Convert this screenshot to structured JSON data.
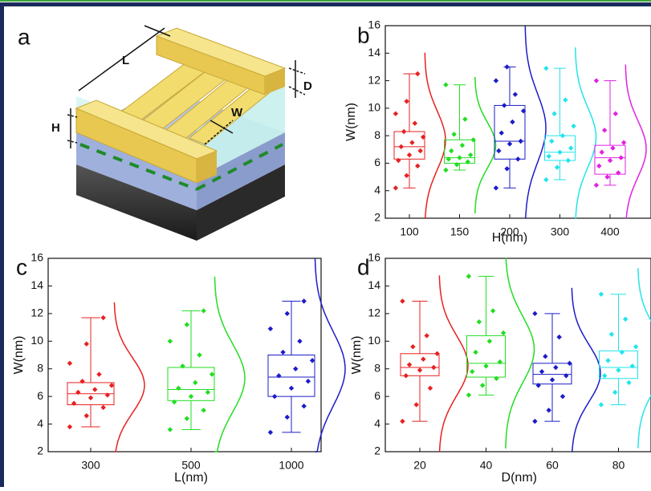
{
  "diagram": {
    "panel_label": "a",
    "labels": {
      "length": "L",
      "depth": "D",
      "height": "H",
      "width": "W"
    }
  },
  "chart_data": [
    {
      "type": "box",
      "panel_label": "b",
      "xlabel": "H(nm)",
      "ylabel": "W(nm)",
      "categories": [
        "100",
        "150",
        "200",
        "300",
        "400"
      ],
      "ylim": [
        2,
        16
      ],
      "yticks": [
        2,
        4,
        6,
        8,
        10,
        12,
        14,
        16
      ],
      "groups": [
        {
          "color": "#e82020",
          "box": [
            4.2,
            6.3,
            7.2,
            8.3,
            12.5
          ],
          "points": [
            4.2,
            5.1,
            5.8,
            6.2,
            6.6,
            6.9,
            7.2,
            7.5,
            7.9,
            8.3,
            8.9,
            9.6,
            10.5,
            12.5
          ]
        },
        {
          "color": "#22dd22",
          "box": [
            5.5,
            6.0,
            6.4,
            7.7,
            11.7
          ],
          "points": [
            5.5,
            5.9,
            6.1,
            6.3,
            6.4,
            6.6,
            6.9,
            7.3,
            7.7,
            8.1,
            9.2,
            11.7
          ]
        },
        {
          "color": "#1c1cc8",
          "box": [
            4.2,
            6.3,
            7.6,
            10.2,
            13.0
          ],
          "points": [
            4.2,
            5.6,
            6.3,
            6.9,
            7.4,
            7.6,
            8.2,
            9.0,
            9.8,
            10.2,
            11.0,
            12.0,
            13.0
          ]
        },
        {
          "color": "#22e4ec",
          "box": [
            4.8,
            6.2,
            6.8,
            8.0,
            12.9
          ],
          "points": [
            4.8,
            5.7,
            6.2,
            6.5,
            6.8,
            7.1,
            7.6,
            8.0,
            8.7,
            9.6,
            10.6,
            12.9
          ]
        },
        {
          "color": "#e022e0",
          "box": [
            4.4,
            5.2,
            6.4,
            7.3,
            12.0
          ],
          "points": [
            4.4,
            5.0,
            5.3,
            5.8,
            6.2,
            6.4,
            6.8,
            7.1,
            7.5,
            8.4,
            9.6,
            12.0
          ]
        }
      ]
    },
    {
      "type": "box",
      "panel_label": "c",
      "xlabel": "L(nm)",
      "ylabel": "W(nm)",
      "categories": [
        "300",
        "500",
        "1000"
      ],
      "ylim": [
        2,
        16
      ],
      "yticks": [
        2,
        4,
        6,
        8,
        10,
        12,
        14,
        16
      ],
      "groups": [
        {
          "color": "#e82020",
          "box": [
            3.8,
            5.4,
            6.2,
            7.0,
            11.7
          ],
          "points": [
            3.8,
            4.6,
            5.2,
            5.5,
            5.9,
            6.1,
            6.3,
            6.5,
            6.8,
            7.1,
            7.6,
            8.4,
            9.8,
            11.7
          ]
        },
        {
          "color": "#22dd22",
          "box": [
            3.6,
            5.7,
            6.5,
            8.1,
            12.2
          ],
          "points": [
            3.6,
            4.4,
            5.0,
            5.6,
            6.0,
            6.3,
            6.6,
            7.0,
            7.6,
            8.2,
            9.0,
            10.0,
            11.2,
            12.2
          ]
        },
        {
          "color": "#1c1cc8",
          "box": [
            3.4,
            6.0,
            7.4,
            9.0,
            12.9
          ],
          "points": [
            3.4,
            4.5,
            5.3,
            6.0,
            6.6,
            7.1,
            7.5,
            8.0,
            8.6,
            9.2,
            10.0,
            10.9,
            12.0,
            12.9
          ]
        }
      ]
    },
    {
      "type": "box",
      "panel_label": "d",
      "xlabel": "D(nm)",
      "ylabel": "W(nm)",
      "categories": [
        "20",
        "40",
        "60",
        "80"
      ],
      "ylim": [
        2,
        16
      ],
      "yticks": [
        2,
        4,
        6,
        8,
        10,
        12,
        14,
        16
      ],
      "groups": [
        {
          "color": "#e82020",
          "box": [
            4.2,
            7.5,
            8.1,
            9.1,
            12.9
          ],
          "points": [
            4.2,
            5.4,
            6.6,
            7.5,
            7.9,
            8.1,
            8.3,
            8.7,
            9.1,
            9.6,
            10.4,
            12.9
          ]
        },
        {
          "color": "#22dd22",
          "box": [
            6.1,
            7.4,
            8.4,
            10.4,
            14.7
          ],
          "points": [
            6.1,
            6.8,
            7.3,
            7.8,
            8.2,
            8.5,
            9.2,
            10.0,
            10.6,
            11.4,
            12.2,
            14.7
          ]
        },
        {
          "color": "#1c1cc8",
          "box": [
            4.2,
            6.9,
            7.6,
            8.4,
            12.0
          ],
          "points": [
            4.2,
            5.0,
            6.0,
            6.8,
            7.2,
            7.5,
            7.8,
            8.1,
            8.4,
            8.9,
            10.3,
            12.0
          ]
        },
        {
          "color": "#22e4ec",
          "box": [
            5.4,
            7.3,
            8.1,
            9.3,
            13.4
          ],
          "points": [
            5.4,
            6.3,
            7.0,
            7.5,
            7.9,
            8.2,
            8.6,
            9.2,
            9.6,
            10.5,
            11.6,
            13.4
          ]
        }
      ]
    }
  ]
}
